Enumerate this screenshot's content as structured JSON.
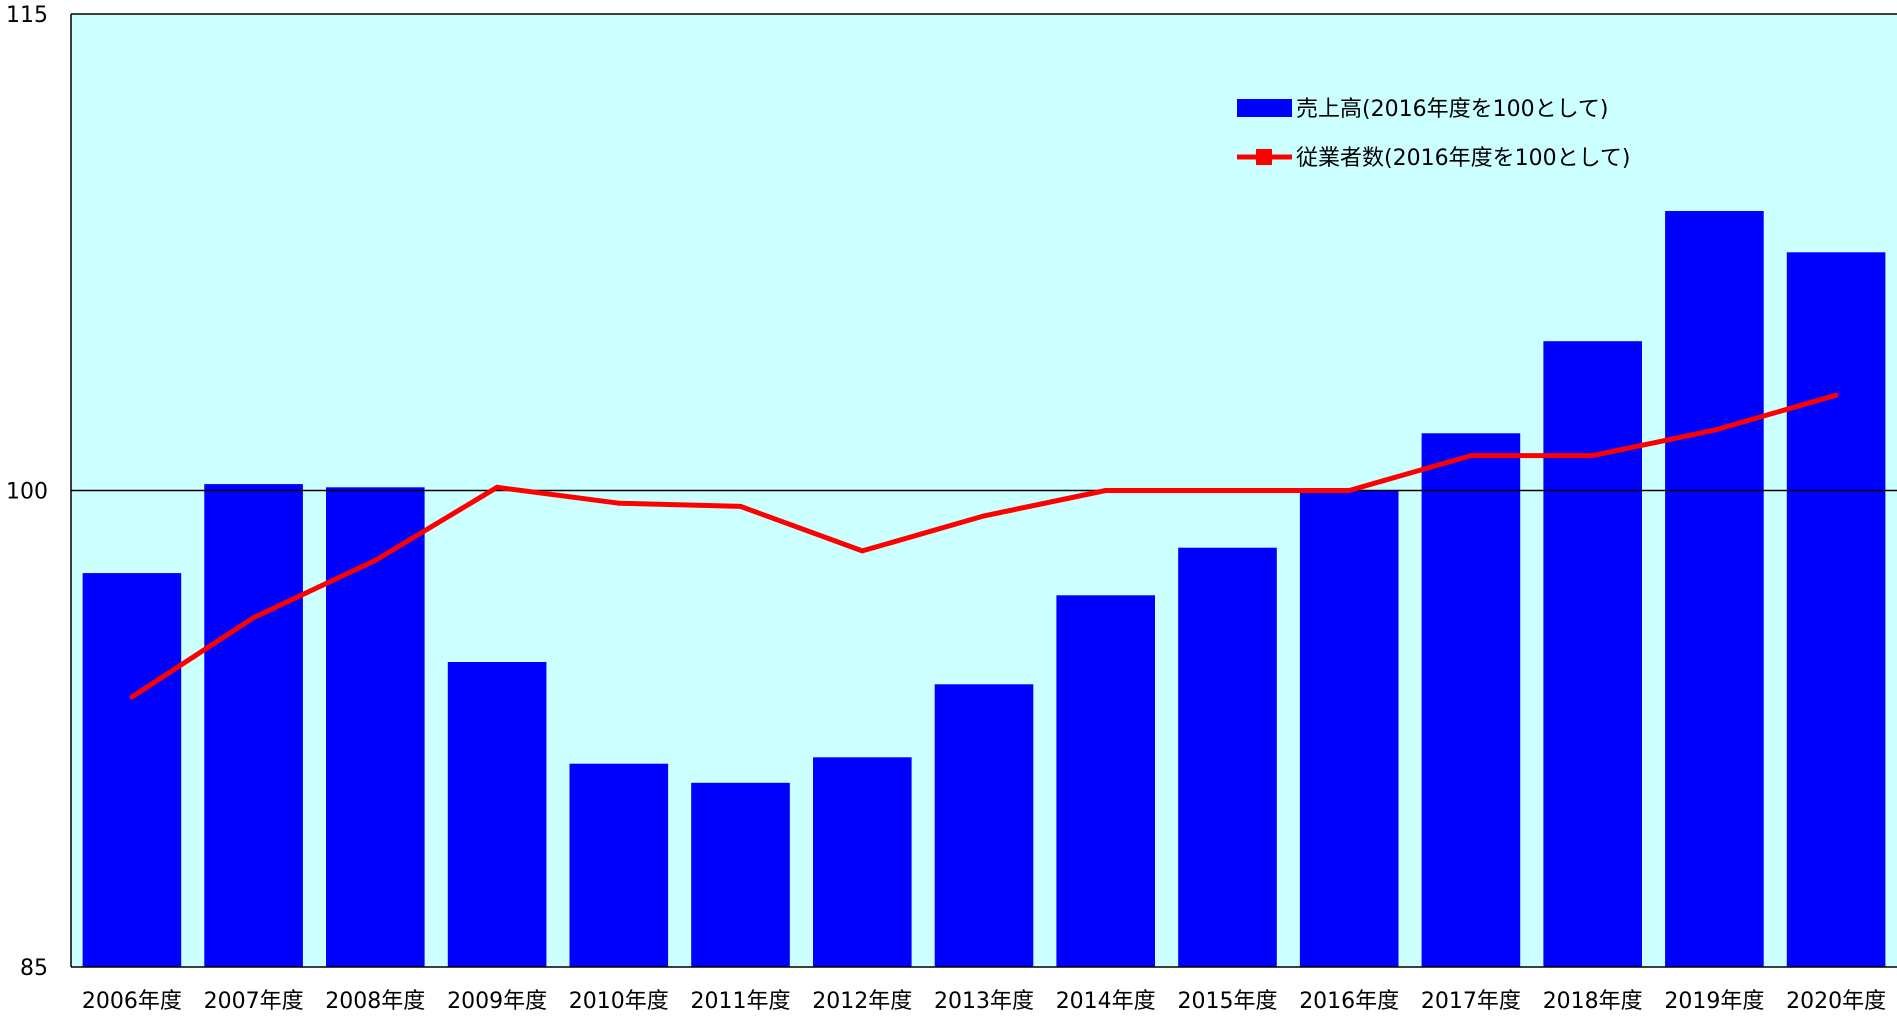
{
  "chart_data": {
    "type": "bar",
    "categories": [
      "2006年度",
      "2007年度",
      "2008年度",
      "2009年度",
      "2010年度",
      "2011年度",
      "2012年度",
      "2013年度",
      "2014年度",
      "2015年度",
      "2016年度",
      "2017年度",
      "2018年度",
      "2019年度",
      "2020年度"
    ],
    "series": [
      {
        "name": "売上高(2016年度を100として)",
        "type": "bar",
        "color": "#0000FF",
        "values": [
          97.4,
          100.2,
          100.1,
          94.6,
          91.4,
          90.8,
          91.6,
          93.9,
          96.7,
          98.2,
          100.0,
          101.8,
          104.7,
          108.8,
          107.5
        ]
      },
      {
        "name": "従業者数(2016年度を100として)",
        "type": "line",
        "color": "#FF0000",
        "values": [
          93.5,
          96.0,
          97.8,
          100.1,
          99.6,
          99.5,
          98.1,
          99.2,
          100.0,
          100.0,
          100.0,
          101.1,
          101.1,
          101.9,
          103.0
        ]
      }
    ],
    "yticks": [
      85,
      100,
      115
    ],
    "ylim": [
      85,
      115
    ],
    "reference_line": 100,
    "plot_background": "#CCFFFF",
    "legend_position": "top-right inside"
  }
}
